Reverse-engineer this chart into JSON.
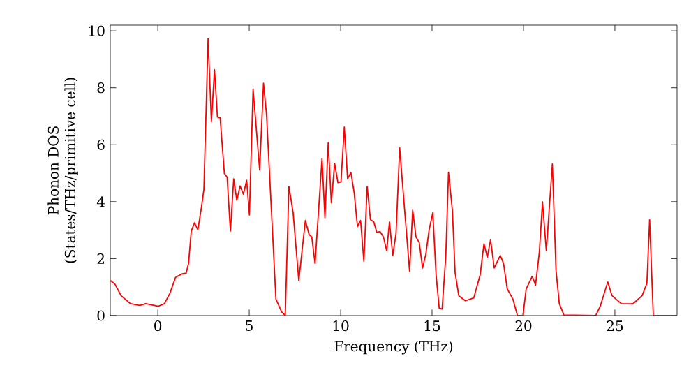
{
  "chart_data": {
    "type": "line",
    "xlabel": "Frequency (THz)",
    "ylabel": "Phonon DOS\n(States/THz/primitive cell)",
    "xlim": [
      -2.6,
      28.4
    ],
    "ylim": [
      0,
      10.2
    ],
    "xticks": [
      0,
      5,
      10,
      15,
      20,
      25
    ],
    "yticks": [
      0,
      2,
      4,
      6,
      8,
      10
    ],
    "grid": false,
    "series": [
      {
        "color": "#ff0000",
        "x": [
          -2.59,
          -2.34,
          -2.01,
          -1.5,
          -0.99,
          -0.66,
          0.03,
          0.36,
          0.66,
          0.97,
          1.3,
          1.55,
          1.68,
          1.83,
          2.01,
          2.19,
          2.37,
          2.52,
          2.75,
          2.93,
          3.1,
          3.26,
          3.41,
          3.64,
          3.79,
          3.97,
          4.15,
          4.32,
          4.5,
          4.68,
          4.86,
          5.01,
          5.21,
          5.57,
          5.78,
          5.95,
          6.18,
          6.46,
          6.77,
          6.97,
          7.17,
          7.4,
          7.71,
          8.07,
          8.27,
          8.42,
          8.6,
          8.98,
          9.14,
          9.32,
          9.49,
          9.67,
          9.85,
          10.02,
          10.2,
          10.38,
          10.56,
          10.74,
          10.92,
          11.09,
          11.27,
          11.45,
          11.63,
          11.81,
          11.98,
          12.16,
          12.34,
          12.52,
          12.67,
          12.85,
          13.03,
          13.23,
          13.46,
          13.77,
          13.94,
          14.12,
          14.3,
          14.48,
          14.66,
          14.84,
          15.04,
          15.22,
          15.39,
          15.55,
          15.75,
          15.9,
          16.11,
          16.26,
          16.46,
          16.82,
          17.28,
          17.63,
          17.84,
          18.02,
          18.2,
          18.4,
          18.73,
          18.91,
          19.11,
          19.42,
          19.67,
          19.97,
          20.15,
          20.48,
          20.66,
          20.87,
          21.04,
          21.25,
          21.58,
          21.78,
          21.96,
          22.21,
          23.95,
          24.2,
          24.61,
          24.84,
          25.35,
          25.98,
          26.49,
          26.75,
          26.9,
          27.1,
          28.4
        ],
        "values": [
          1.23,
          1.1,
          0.7,
          0.42,
          0.36,
          0.42,
          0.33,
          0.42,
          0.78,
          1.34,
          1.46,
          1.49,
          1.83,
          2.97,
          3.26,
          3.01,
          3.73,
          4.43,
          9.73,
          6.81,
          8.64,
          6.97,
          6.94,
          4.99,
          4.86,
          2.97,
          4.8,
          4.05,
          4.55,
          4.26,
          4.75,
          3.53,
          7.96,
          5.11,
          8.16,
          7.02,
          4.1,
          0.58,
          0.13,
          0,
          4.53,
          3.61,
          1.23,
          3.34,
          2.85,
          2.76,
          1.83,
          5.51,
          3.44,
          6.07,
          3.96,
          5.35,
          4.67,
          4.7,
          6.62,
          4.8,
          5.03,
          4.31,
          3.13,
          3.34,
          1.91,
          4.53,
          3.37,
          3.29,
          2.92,
          2.95,
          2.76,
          2.27,
          3.29,
          2.11,
          2.89,
          5.89,
          4.02,
          1.56,
          3.7,
          2.76,
          2.56,
          1.67,
          2.16,
          3.01,
          3.61,
          1.43,
          0.26,
          0.23,
          2.08,
          5.03,
          3.7,
          1.51,
          0.7,
          0.52,
          0.62,
          1.43,
          2.52,
          2.05,
          2.66,
          1.67,
          2.11,
          1.83,
          0.94,
          0.58,
          0,
          0,
          0.94,
          1.38,
          1.07,
          2.24,
          3.99,
          2.27,
          5.32,
          1.59,
          0.42,
          0.02,
          0,
          0.33,
          1.18,
          0.7,
          0.42,
          0.41,
          0.7,
          1.13,
          3.37,
          0,
          0
        ]
      }
    ]
  }
}
